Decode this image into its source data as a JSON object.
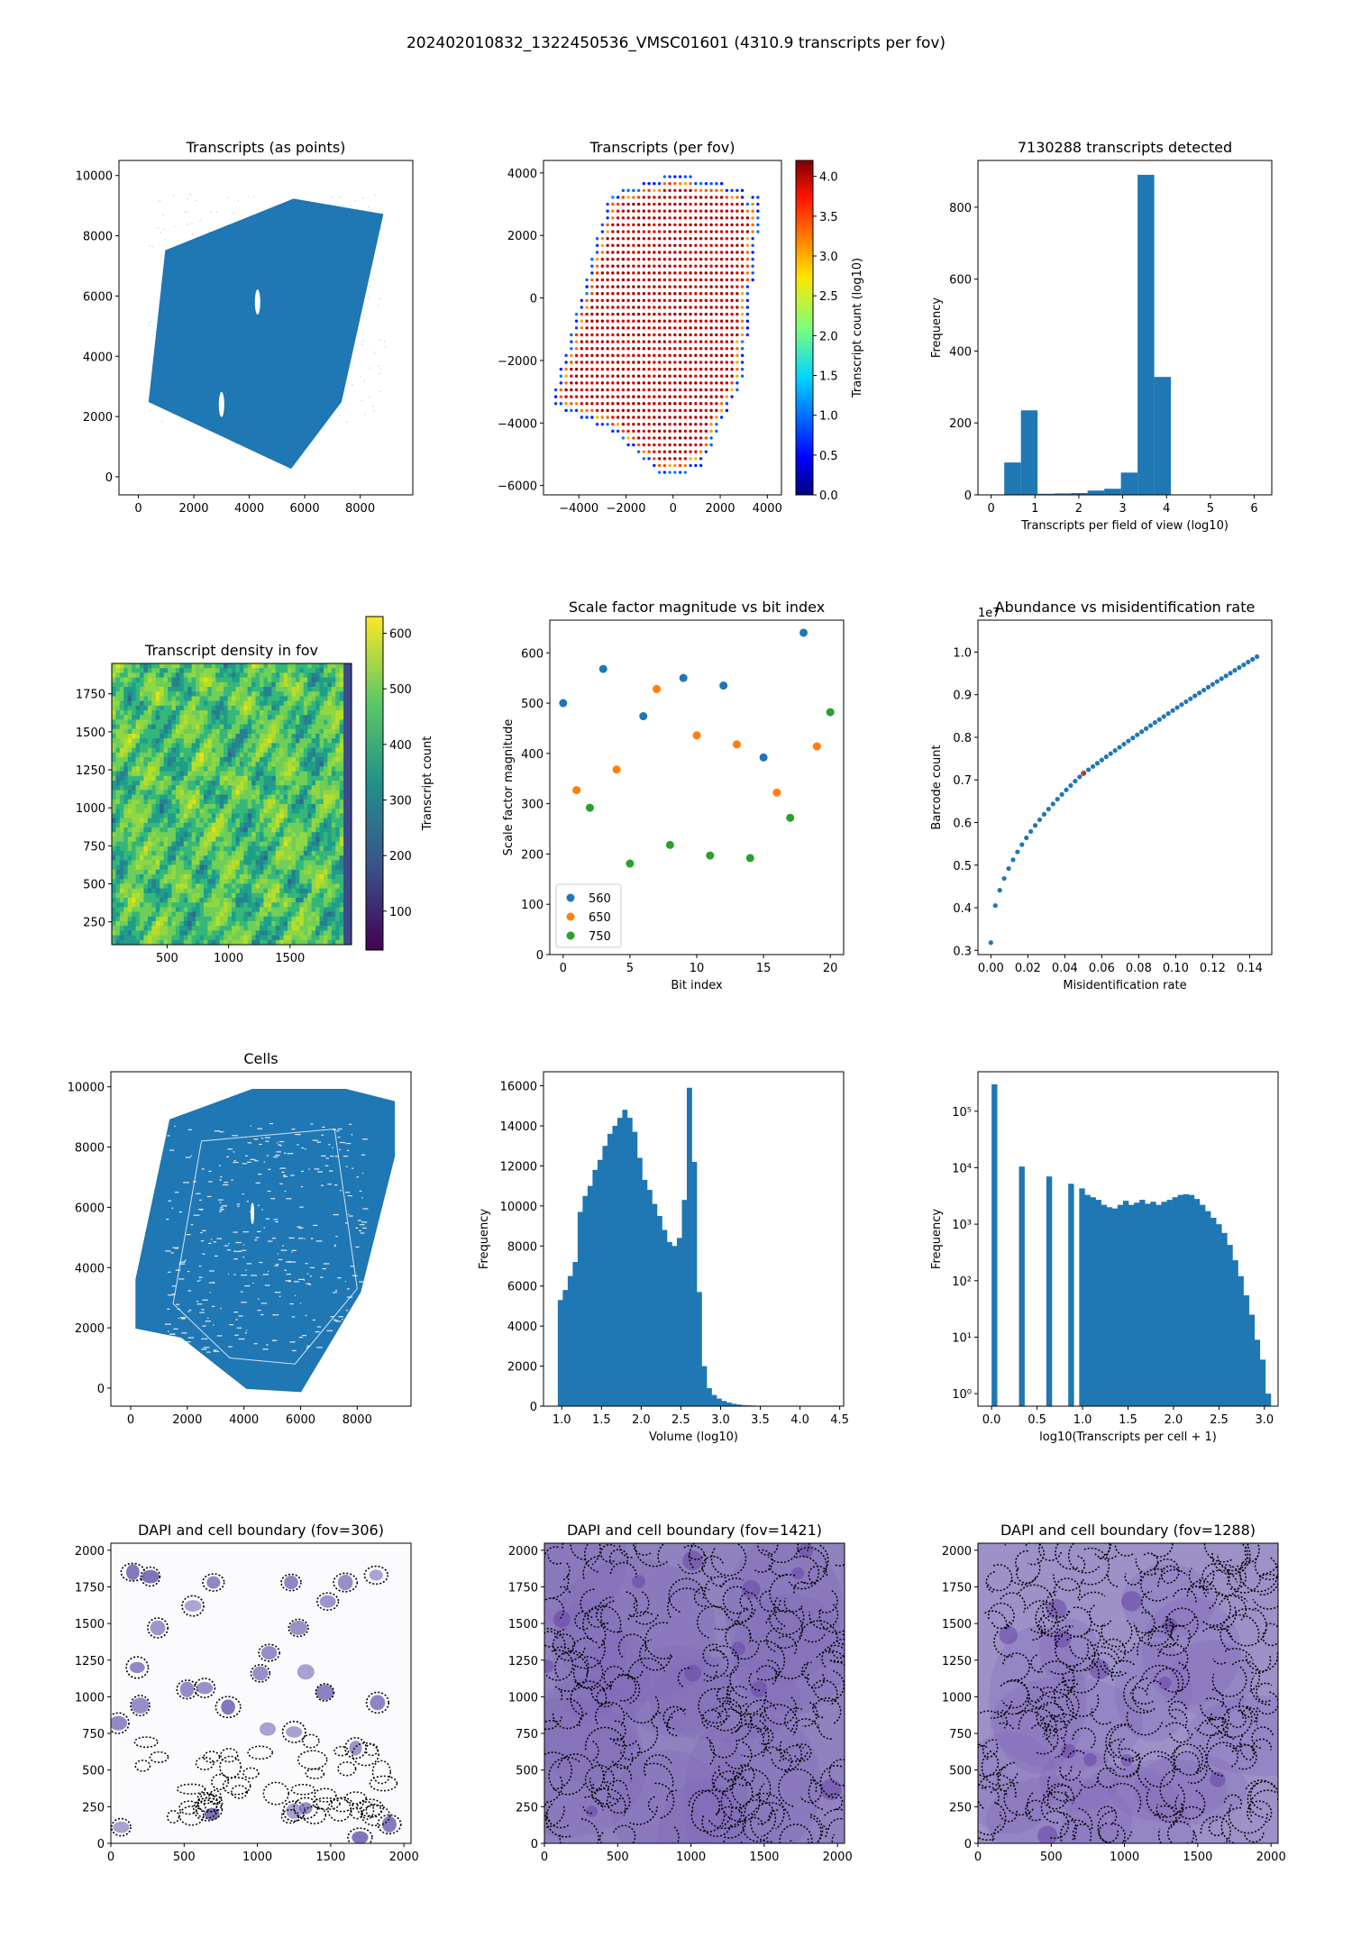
{
  "suptitle": "202402010832_1322450536_VMSC01601 (4310.9 transcripts per fov)",
  "colors": {
    "c0": "#1f77b4",
    "c1": "#ff7f0e",
    "c2": "#2ca02c",
    "dapi": "#5b4a9e"
  },
  "chart_data": [
    {
      "id": "tx-points",
      "type": "scatter",
      "title": "Transcripts (as points)",
      "xlabel": "",
      "ylabel": "",
      "xlim": [
        -700,
        9900
      ],
      "ylim": [
        -600,
        10500
      ],
      "xticks": [
        0,
        2000,
        4000,
        6000,
        8000
      ],
      "yticks": [
        0,
        2000,
        4000,
        6000,
        8000,
        10000
      ],
      "tick_labels_x": [
        "0",
        "2000",
        "4000",
        "6000",
        "8000"
      ],
      "tick_labels_y": [
        "0",
        "2000",
        "4000",
        "6000",
        "8000",
        "10000"
      ],
      "region_outline": [
        [
          400,
          2500
        ],
        [
          1000,
          7500
        ],
        [
          5600,
          9200
        ],
        [
          8800,
          8700
        ],
        [
          7300,
          2500
        ],
        [
          5500,
          300
        ]
      ],
      "holes": [
        [
          4300,
          5800
        ],
        [
          3000,
          2400
        ]
      ]
    },
    {
      "id": "tx-per-fov",
      "type": "scatter",
      "title": "Transcripts (per fov)",
      "xlabel": "",
      "ylabel": "",
      "colorbar_label": "Transcript count (log10)",
      "colorbar_ticks": [
        "0.0",
        "0.5",
        "1.0",
        "1.5",
        "2.0",
        "2.5",
        "3.0",
        "3.5",
        "4.0"
      ],
      "clim": [
        0,
        4.2
      ],
      "xlim": [
        -5500,
        4600
      ],
      "ylim": [
        -6300,
        4400
      ],
      "xticks": [
        -4000,
        -2000,
        0,
        2000,
        4000
      ],
      "yticks": [
        -6000,
        -4000,
        -2000,
        0,
        2000,
        4000
      ],
      "tick_labels_x": [
        "−4000",
        "−2000",
        "0",
        "2000",
        "4000"
      ],
      "tick_labels_y": [
        "−6000",
        "−4000",
        "−2000",
        "0",
        "2000",
        "4000"
      ],
      "region_outline": [
        [
          -5200,
          -3400
        ],
        [
          -2700,
          3300
        ],
        [
          0,
          4000
        ],
        [
          3100,
          3500
        ],
        [
          3100,
          3000
        ],
        [
          3800,
          3600
        ],
        [
          3000,
          -2500
        ],
        [
          1200,
          -5400
        ],
        [
          -300,
          -5800
        ],
        [
          -2500,
          -4300
        ]
      ]
    },
    {
      "id": "tx-hist",
      "type": "bar",
      "title": "7130288 transcripts detected",
      "xlabel": "Transcripts per field of view (log10)",
      "ylabel": "Frequency",
      "xlim": [
        -0.3,
        6.4
      ],
      "ylim": [
        0,
        930
      ],
      "xticks": [
        0,
        1,
        2,
        3,
        4,
        5,
        6
      ],
      "yticks": [
        0,
        200,
        400,
        600,
        800
      ],
      "tick_labels_x": [
        "0",
        "1",
        "2",
        "3",
        "4",
        "5",
        "6"
      ],
      "tick_labels_y": [
        "0",
        "200",
        "400",
        "600",
        "800"
      ],
      "bin_edges": [
        0.3,
        0.68,
        1.06,
        1.44,
        1.82,
        2.2,
        2.58,
        2.96,
        3.34,
        3.72,
        4.1
      ],
      "values": [
        90,
        235,
        3,
        4,
        5,
        12,
        17,
        62,
        890,
        328
      ]
    },
    {
      "id": "density",
      "type": "heatmap",
      "title": "Transcript density in fov",
      "xlabel": "",
      "ylabel": "",
      "colorbar_label": "Transcript count",
      "clim": [
        30,
        630
      ],
      "colorbar_ticks": [
        "100",
        "200",
        "300",
        "400",
        "500",
        "600"
      ],
      "xlim": [
        50,
        2000
      ],
      "ylim": [
        100,
        1950
      ],
      "xticks": [
        500,
        1000,
        1500
      ],
      "yticks": [
        250,
        500,
        750,
        1000,
        1250,
        1500,
        1750
      ],
      "tick_labels_x": [
        "500",
        "1000",
        "1500"
      ],
      "tick_labels_y": [
        "250",
        "500",
        "750",
        "1000",
        "1250",
        "1500",
        "1750"
      ]
    },
    {
      "id": "scale",
      "type": "scatter",
      "title": "Scale factor magnitude vs bit index",
      "xlabel": "Bit index",
      "ylabel": "Scale factor magnitude",
      "xlim": [
        -1,
        21
      ],
      "ylim": [
        0,
        665
      ],
      "xticks": [
        0,
        5,
        10,
        15,
        20
      ],
      "yticks": [
        0,
        100,
        200,
        300,
        400,
        500,
        600
      ],
      "tick_labels_x": [
        "0",
        "5",
        "10",
        "15",
        "20"
      ],
      "tick_labels_y": [
        "0",
        "100",
        "200",
        "300",
        "400",
        "500",
        "600"
      ],
      "legend": "lower left",
      "series": [
        {
          "name": "560",
          "x": [
            0,
            3,
            6,
            9,
            12,
            15,
            18
          ],
          "y": [
            500,
            568,
            474,
            550,
            535,
            392,
            640
          ]
        },
        {
          "name": "650",
          "x": [
            1,
            4,
            7,
            10,
            13,
            16,
            19
          ],
          "y": [
            327,
            368,
            528,
            436,
            418,
            322,
            414
          ]
        },
        {
          "name": "750",
          "x": [
            2,
            5,
            8,
            11,
            14,
            17,
            20
          ],
          "y": [
            292,
            181,
            218,
            197,
            192,
            272,
            482
          ]
        }
      ]
    },
    {
      "id": "abundance",
      "type": "scatter",
      "title": "Abundance vs misidentification rate",
      "xlabel": "Misidentification rate",
      "ylabel": "Barcode count",
      "y_offset": "1e7",
      "xlim": [
        -0.007,
        0.152
      ],
      "ylim": [
        0.29,
        1.075
      ],
      "xticks": [
        0,
        0.02,
        0.04,
        0.06,
        0.08,
        0.1,
        0.12,
        0.14
      ],
      "yticks": [
        0.3,
        0.4,
        0.5,
        0.6,
        0.7,
        0.8,
        0.9,
        1.0
      ],
      "tick_labels_x": [
        "0.00",
        "0.02",
        "0.04",
        "0.06",
        "0.08",
        "0.10",
        "0.12",
        "0.14"
      ],
      "tick_labels_y": [
        "0.3",
        "0.4",
        "0.5",
        "0.6",
        "0.7",
        "0.8",
        "0.9",
        "1.0"
      ],
      "highlight": {
        "x": 0.05,
        "y": 0.715
      }
    },
    {
      "id": "cells",
      "type": "scatter",
      "title": "Cells",
      "xlabel": "",
      "ylabel": "",
      "xlim": [
        -700,
        9900
      ],
      "ylim": [
        -600,
        10500
      ],
      "xticks": [
        0,
        2000,
        4000,
        6000,
        8000
      ],
      "yticks": [
        0,
        2000,
        4000,
        6000,
        8000,
        10000
      ],
      "tick_labels_x": [
        "0",
        "2000",
        "4000",
        "6000",
        "8000"
      ],
      "tick_labels_y": [
        "0",
        "2000",
        "4000",
        "6000",
        "8000",
        "10000"
      ],
      "region_outline": [
        [
          200,
          2000
        ],
        [
          200,
          3600
        ],
        [
          1400,
          8900
        ],
        [
          4300,
          9900
        ],
        [
          7600,
          9900
        ],
        [
          9300,
          9500
        ],
        [
          9300,
          7700
        ],
        [
          8100,
          3200
        ],
        [
          6000,
          -100
        ],
        [
          4100,
          0
        ],
        [
          1800,
          1700
        ]
      ]
    },
    {
      "id": "volume",
      "type": "bar",
      "title": "",
      "xlabel": "Volume (log10)",
      "ylabel": "Frequency",
      "xlim": [
        0.77,
        4.55
      ],
      "ylim": [
        0,
        16700
      ],
      "xticks": [
        1.0,
        1.5,
        2.0,
        2.5,
        3.0,
        3.5,
        4.0,
        4.5
      ],
      "yticks": [
        0,
        2000,
        4000,
        6000,
        8000,
        10000,
        12000,
        14000,
        16000
      ],
      "tick_labels_x": [
        "1.0",
        "1.5",
        "2.0",
        "2.5",
        "3.0",
        "3.5",
        "4.0",
        "4.5"
      ],
      "tick_labels_y": [
        "0",
        "2000",
        "4000",
        "6000",
        "8000",
        "10000",
        "12000",
        "14000",
        "16000"
      ],
      "bin_start": 0.95,
      "bin_width": 0.0625,
      "values": [
        5300,
        5800,
        6500,
        7200,
        9700,
        10500,
        11000,
        11800,
        12300,
        13000,
        13600,
        14000,
        14400,
        14800,
        14400,
        13700,
        12400,
        11300,
        10800,
        10100,
        9500,
        8800,
        8200,
        8000,
        8400,
        10300,
        15900,
        12200,
        5700,
        2000,
        900,
        560,
        380,
        260,
        180,
        120,
        80,
        55,
        40,
        30,
        20,
        15,
        10,
        8,
        5,
        4,
        3,
        2,
        2,
        1
      ]
    },
    {
      "id": "tx-per-cell",
      "type": "bar",
      "title": "",
      "xlabel": "log10(Transcripts per cell + 1)",
      "ylabel": "Frequency",
      "yscale": "log",
      "xlim": [
        -0.15,
        3.15
      ],
      "ylim": [
        0.6,
        500000
      ],
      "xticks": [
        0,
        0.5,
        1.0,
        1.5,
        2.0,
        2.5,
        3.0
      ],
      "yticks": [
        1,
        10,
        100,
        1000,
        10000,
        100000
      ],
      "tick_labels_x": [
        "0.0",
        "0.5",
        "1.0",
        "1.5",
        "2.0",
        "2.5",
        "3.0"
      ],
      "tick_labels_y": [
        "10⁰",
        "10¹",
        "10²",
        "10³",
        "10⁴",
        "10⁵"
      ],
      "bin_start": 0.0,
      "bin_width": 0.0602,
      "values": [
        300000,
        0,
        0,
        0,
        0,
        10500,
        0,
        0,
        0,
        0,
        7000,
        0,
        0,
        0,
        5200,
        0,
        4300,
        3300,
        3000,
        2700,
        2200,
        2000,
        1900,
        2200,
        2600,
        2200,
        2400,
        2700,
        2300,
        2500,
        2200,
        2500,
        2700,
        3000,
        3300,
        3400,
        3300,
        2800,
        2200,
        1700,
        1300,
        1000,
        700,
        430,
        230,
        120,
        55,
        25,
        9,
        4,
        1
      ]
    },
    {
      "id": "dapi-306",
      "type": "scatter",
      "title": "DAPI and cell boundary (fov=306)",
      "xlim": [
        0,
        2048
      ],
      "ylim": [
        0,
        2048
      ],
      "background": "#fbfbfe",
      "style": "sparse",
      "xticks": [
        0,
        500,
        1000,
        1500,
        2000
      ],
      "yticks": [
        0,
        250,
        500,
        750,
        1000,
        1250,
        1500,
        1750,
        2000
      ],
      "tick_labels_x": [
        "0",
        "500",
        "1000",
        "1500",
        "2000"
      ],
      "tick_labels_y": [
        "0",
        "250",
        "500",
        "750",
        "1000",
        "1250",
        "1500",
        "1750",
        "2000"
      ]
    },
    {
      "id": "dapi-1421",
      "type": "scatter",
      "title": "DAPI and cell boundary (fov=1421)",
      "xlim": [
        0,
        2048
      ],
      "ylim": [
        0,
        2048
      ],
      "background": "#8f82bf",
      "style": "dense",
      "xticks": [
        0,
        500,
        1000,
        1500,
        2000
      ],
      "yticks": [
        0,
        250,
        500,
        750,
        1000,
        1250,
        1500,
        1750,
        2000
      ],
      "tick_labels_x": [
        "0",
        "500",
        "1000",
        "1500",
        "2000"
      ],
      "tick_labels_y": [
        "0",
        "250",
        "500",
        "750",
        "1000",
        "1250",
        "1500",
        "1750",
        "2000"
      ]
    },
    {
      "id": "dapi-1288",
      "type": "scatter",
      "title": "DAPI and cell boundary (fov=1288)",
      "xlim": [
        0,
        2048
      ],
      "ylim": [
        0,
        2048
      ],
      "background": "#9d91c8",
      "style": "dense",
      "xticks": [
        0,
        500,
        1000,
        1500,
        2000
      ],
      "yticks": [
        0,
        250,
        500,
        750,
        1000,
        1250,
        1500,
        1750,
        2000
      ],
      "tick_labels_x": [
        "0",
        "500",
        "1000",
        "1500",
        "2000"
      ],
      "tick_labels_y": [
        "0",
        "250",
        "500",
        "750",
        "1000",
        "1250",
        "1500",
        "1750",
        "2000"
      ]
    }
  ]
}
